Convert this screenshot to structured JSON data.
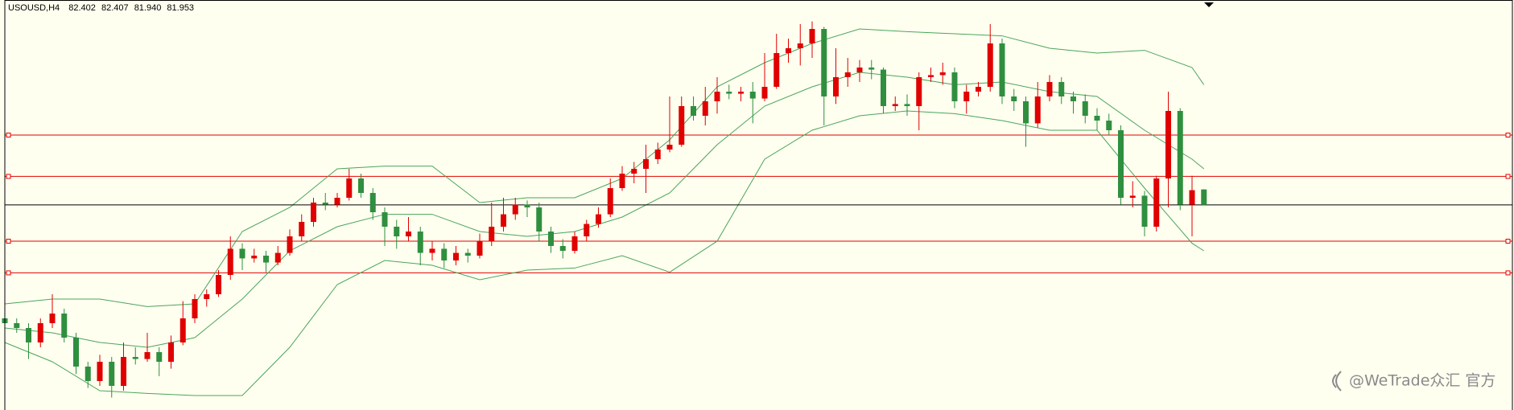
{
  "header": {
    "symbol": "USOUSD,H4",
    "ohlc_labels": [
      "82.402",
      "82.407",
      "81.940",
      "81.953"
    ]
  },
  "watermark": "@WeTrade众汇 官方",
  "chart_data": {
    "type": "candlestick",
    "ylim": [
      76.0,
      87.9
    ],
    "up_color": "#e00000",
    "down_color": "#2f8f3f",
    "band_color": "#4aa55a",
    "level_color": "#e00000",
    "price_line_color": "#000000",
    "open": [
      78.66,
      78.52,
      78.38,
      77.96,
      78.52,
      78.8,
      78.1,
      77.26,
      76.84,
      77.4,
      76.7,
      77.54,
      77.48,
      77.68,
      77.4,
      77.96,
      78.66,
      79.22,
      79.36,
      79.92,
      80.68,
      80.4,
      80.48,
      80.28,
      80.56,
      81.04,
      81.46,
      82.02,
      81.96,
      82.16,
      82.72,
      82.3,
      81.74,
      81.32,
      81.04,
      81.18,
      80.56,
      80.68,
      80.34,
      80.56,
      80.48,
      80.9,
      81.32,
      81.68,
      81.96,
      81.88,
      81.18,
      80.76,
      80.62,
      81.04,
      81.4,
      81.68,
      82.44,
      82.86,
      83.0,
      83.28,
      83.56,
      83.7,
      84.82,
      84.54,
      84.96,
      85.24,
      85.18,
      85.24,
      85.04,
      85.38,
      86.36,
      86.5,
      86.64,
      87.06,
      85.1,
      85.66,
      85.8,
      85.94,
      85.88,
      84.82,
      84.88,
      84.82,
      85.66,
      85.72,
      85.8,
      84.96,
      85.24,
      85.38,
      86.64,
      85.1,
      84.96,
      84.32,
      85.1,
      85.52,
      85.1,
      84.96,
      84.54,
      84.4,
      84.12,
      82.16,
      82.22,
      81.32,
      82.72,
      84.68,
      81.96,
      82.402
    ],
    "high": [
      78.88,
      78.66,
      78.52,
      78.66,
      79.36,
      78.94,
      78.24,
      77.4,
      77.6,
      77.54,
      77.96,
      77.82,
      78.24,
      77.82,
      78.16,
      79.16,
      79.36,
      79.5,
      80.06,
      81.04,
      80.84,
      80.68,
      80.62,
      80.76,
      81.24,
      81.68,
      82.16,
      82.3,
      82.3,
      83.0,
      82.86,
      82.44,
      81.88,
      81.52,
      81.6,
      81.32,
      80.9,
      80.84,
      80.76,
      80.68,
      81.12,
      82.02,
      82.16,
      82.16,
      82.08,
      82.02,
      81.32,
      80.96,
      81.18,
      81.52,
      81.88,
      82.72,
      83.08,
      83.2,
      83.7,
      83.76,
      85.1,
      85.1,
      85.1,
      85.38,
      85.66,
      85.44,
      85.38,
      85.52,
      86.36,
      86.92,
      86.78,
      87.2,
      87.28,
      87.12,
      86.5,
      86.22,
      86.16,
      86.16,
      85.94,
      85.1,
      85.16,
      85.8,
      85.94,
      86.08,
      85.94,
      85.44,
      85.52,
      87.2,
      86.78,
      85.32,
      85.1,
      85.52,
      85.72,
      85.66,
      85.24,
      85.16,
      84.76,
      84.6,
      84.26,
      82.64,
      82.36,
      82.8,
      85.24,
      84.76,
      82.8,
      82.407
    ],
    "low": [
      78.38,
      78.24,
      77.48,
      77.82,
      78.38,
      77.96,
      77.04,
      76.64,
      76.7,
      76.36,
      76.56,
      77.32,
      77.4,
      76.98,
      77.2,
      77.88,
      78.52,
      79.0,
      79.28,
      79.78,
      80.06,
      80.28,
      80.0,
      80.2,
      80.48,
      80.9,
      81.32,
      81.8,
      81.88,
      82.08,
      82.16,
      81.52,
      80.76,
      80.68,
      80.9,
      80.2,
      80.34,
      80.12,
      80.2,
      80.28,
      80.4,
      80.76,
      81.18,
      81.52,
      81.6,
      80.9,
      80.56,
      80.4,
      80.54,
      80.9,
      81.29,
      81.6,
      82.36,
      82.58,
      82.3,
      83.14,
      83.48,
      83.64,
      84.4,
      84.26,
      84.6,
      85.02,
      84.96,
      84.32,
      84.96,
      85.32,
      86.08,
      86.0,
      86.22,
      84.26,
      84.88,
      85.38,
      85.52,
      85.6,
      84.6,
      84.68,
      84.54,
      84.12,
      85.52,
      85.44,
      84.76,
      84.6,
      85.1,
      85.24,
      84.88,
      84.68,
      83.64,
      84.2,
      84.96,
      84.88,
      84.6,
      84.32,
      84.12,
      83.98,
      81.96,
      81.88,
      81.04,
      81.18,
      81.88,
      81.8,
      81.04,
      81.94
    ],
    "close": [
      78.52,
      78.38,
      77.96,
      78.52,
      78.8,
      78.1,
      77.26,
      76.84,
      77.4,
      76.7,
      77.54,
      77.48,
      77.68,
      77.4,
      77.96,
      78.66,
      79.22,
      79.36,
      79.92,
      80.68,
      80.4,
      80.48,
      80.28,
      80.56,
      81.04,
      81.46,
      82.02,
      81.96,
      82.16,
      82.72,
      82.3,
      81.74,
      81.32,
      81.04,
      81.18,
      80.56,
      80.68,
      80.34,
      80.56,
      80.48,
      80.9,
      81.32,
      81.68,
      81.96,
      81.88,
      81.18,
      80.76,
      80.62,
      81.04,
      81.4,
      81.68,
      82.44,
      82.86,
      83.0,
      83.28,
      83.56,
      83.7,
      84.82,
      84.54,
      84.96,
      85.24,
      85.18,
      85.24,
      85.04,
      85.38,
      86.36,
      86.5,
      86.64,
      87.06,
      85.1,
      85.66,
      85.8,
      85.94,
      85.88,
      84.82,
      84.88,
      84.82,
      85.66,
      85.72,
      85.8,
      84.96,
      85.24,
      85.38,
      86.64,
      85.1,
      84.96,
      84.32,
      85.1,
      85.52,
      85.1,
      84.96,
      84.54,
      84.4,
      84.12,
      82.16,
      82.22,
      81.32,
      82.72,
      84.68,
      81.96,
      82.38,
      81.953
    ],
    "band_x": [
      0,
      4,
      8,
      12,
      16,
      20,
      24,
      28,
      32,
      36,
      40,
      44,
      48,
      52,
      56,
      60,
      64,
      68,
      72,
      76,
      80,
      84,
      88,
      92,
      96,
      100,
      101
    ],
    "band_upper": [
      79.08,
      79.22,
      79.22,
      79.0,
      79.08,
      81.18,
      81.88,
      83.0,
      83.08,
      83.08,
      82.02,
      82.16,
      82.16,
      82.72,
      83.84,
      85.38,
      86.08,
      86.64,
      87.06,
      86.98,
      86.92,
      86.86,
      86.5,
      86.36,
      86.44,
      85.94,
      85.44
    ],
    "band_middle": [
      78.38,
      78.24,
      77.96,
      77.82,
      78.1,
      79.22,
      80.62,
      81.32,
      81.68,
      81.68,
      81.18,
      81.04,
      81.18,
      81.6,
      82.3,
      83.7,
      84.82,
      85.38,
      85.8,
      85.66,
      85.44,
      85.52,
      85.24,
      85.1,
      84.12,
      83.28,
      83.0
    ],
    "band_lower": [
      77.96,
      77.4,
      76.56,
      76.48,
      76.42,
      76.42,
      77.82,
      79.64,
      80.34,
      80.2,
      79.78,
      80.06,
      80.12,
      80.48,
      80.0,
      80.9,
      83.28,
      84.12,
      84.54,
      84.68,
      84.6,
      84.4,
      84.12,
      84.12,
      82.44,
      80.84,
      80.62
    ],
    "levels": [
      83.98,
      82.78,
      80.9,
      79.98
    ]
  }
}
